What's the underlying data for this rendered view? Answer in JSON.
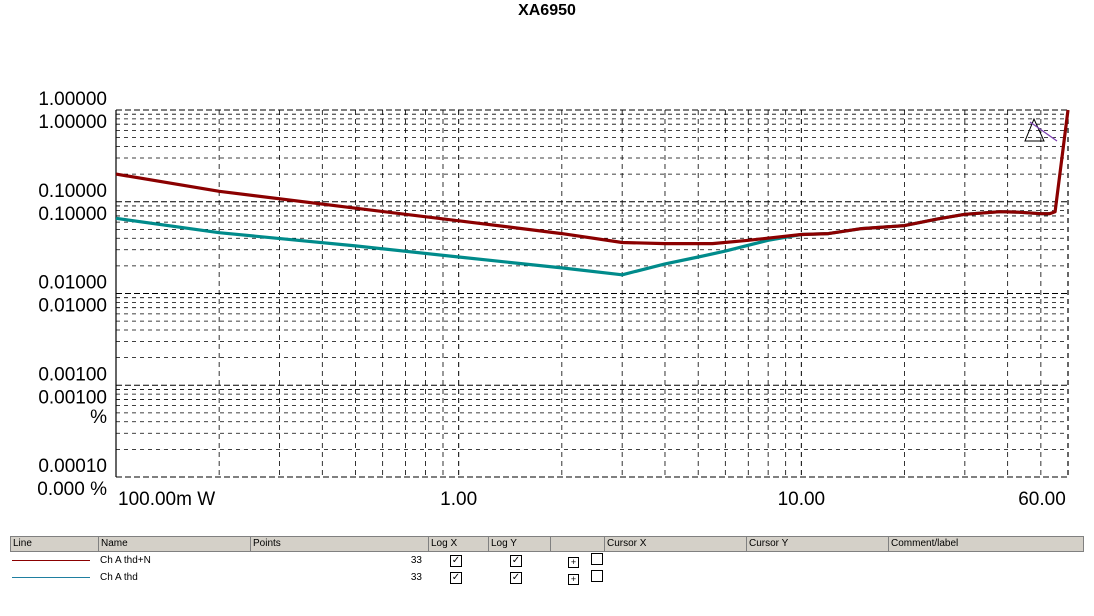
{
  "title": "XA6950",
  "chart_data": {
    "type": "line",
    "title": "XA6950",
    "xscale": "log",
    "yscale": "log",
    "xlim": [
      0.1,
      60
    ],
    "ylim": [
      0.0001,
      1
    ],
    "x_tick_labels": [
      {
        "value": 0.1,
        "label": "100.00m W"
      },
      {
        "value": 1,
        "label": "1.00"
      },
      {
        "value": 10,
        "label": "10.00"
      },
      {
        "value": 60,
        "label": "60.00"
      }
    ],
    "y_tick_labels": [
      {
        "value": 1,
        "label": "1.00000",
        "dup": "1.00000"
      },
      {
        "value": 0.1,
        "label": "0.10000",
        "dup": "0.10000"
      },
      {
        "value": 0.01,
        "label": "0.01000",
        "dup": "0.01000"
      },
      {
        "value": 0.001,
        "label": "0.00100",
        "dup": "0.00100"
      },
      {
        "value": 0.0001,
        "label": "0.00010",
        "dup": "0.000 %"
      }
    ],
    "y_unit_label": "%",
    "grid": true,
    "series": [
      {
        "name": "Ch A thd+N",
        "color": "#8b0000",
        "x": [
          0.1,
          0.2,
          0.5,
          1.0,
          2.0,
          3.0,
          4.0,
          5.5,
          7.0,
          10.0,
          12.0,
          15.0,
          20.0,
          25.0,
          30.0,
          38.0,
          43.0,
          50.0,
          53.0,
          55.0,
          60.0
        ],
        "y": [
          0.2,
          0.13,
          0.085,
          0.062,
          0.045,
          0.036,
          0.035,
          0.035,
          0.038,
          0.044,
          0.045,
          0.051,
          0.055,
          0.065,
          0.073,
          0.078,
          0.077,
          0.074,
          0.074,
          0.078,
          1.0
        ]
      },
      {
        "name": "Ch A thd",
        "color": "#008b8b",
        "x": [
          0.1,
          0.2,
          0.5,
          1.0,
          2.0,
          3.0,
          4.0,
          5.0,
          6.0,
          8.0,
          10.0,
          12.0,
          15.0,
          20.0,
          25.0,
          30.0,
          38.0,
          43.0,
          50.0,
          53.0
        ],
        "y": [
          0.066,
          0.046,
          0.033,
          0.025,
          0.019,
          0.016,
          0.021,
          0.025,
          0.029,
          0.038,
          0.044,
          0.045,
          0.051,
          0.055,
          0.065,
          0.073,
          0.078,
          0.077,
          0.074,
          0.074
        ]
      }
    ]
  },
  "legend": {
    "headers": {
      "line": "Line",
      "name": "Name",
      "points": "Points",
      "log_x": "Log X",
      "log_y": "Log Y",
      "blank": "",
      "cursor_x": "Cursor X",
      "cursor_y": "Cursor Y",
      "comment": "Comment/label"
    },
    "rows": [
      {
        "name": "Ch A thd+N",
        "points": "33",
        "color": "#8b0000",
        "log_x": true,
        "log_y": true
      },
      {
        "name": "Ch A thd",
        "points": "33",
        "color": "#1f7fa0",
        "log_x": true,
        "log_y": true
      }
    ]
  }
}
